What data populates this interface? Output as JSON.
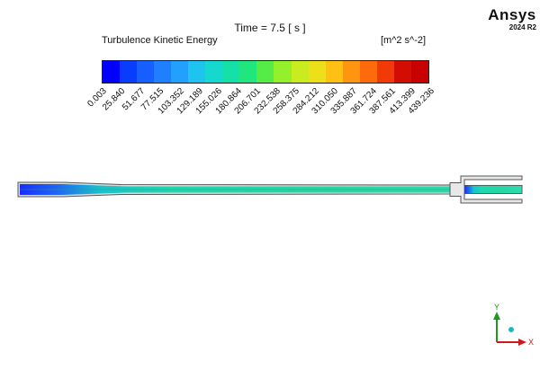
{
  "header": {
    "time_label": "Time = 7.5 [ s ]",
    "variable": "Turbulence Kinetic Energy",
    "units": "[m^2 s^-2]"
  },
  "brand": {
    "name": "Ansys",
    "version": "2024 R2"
  },
  "colorbar": {
    "ticks": [
      "0.003",
      "25.840",
      "51.677",
      "77.515",
      "103.352",
      "129.189",
      "155.026",
      "180.864",
      "206.701",
      "232.538",
      "258.375",
      "284.212",
      "310.050",
      "335.887",
      "361.724",
      "387.561",
      "413.399",
      "439.236"
    ],
    "colors": [
      "#0000ff",
      "#0a3cff",
      "#1560ff",
      "#1f80ff",
      "#23a0ff",
      "#1ec3f0",
      "#16d8cf",
      "#14e0a8",
      "#20e67e",
      "#55ec48",
      "#95f02c",
      "#c8ec1e",
      "#ece01a",
      "#ffc014",
      "#ff9410",
      "#ff6a0c",
      "#f03a08",
      "#d20e04",
      "#c80000"
    ]
  },
  "axes": {
    "y_label": "Y",
    "x_label": "X"
  }
}
